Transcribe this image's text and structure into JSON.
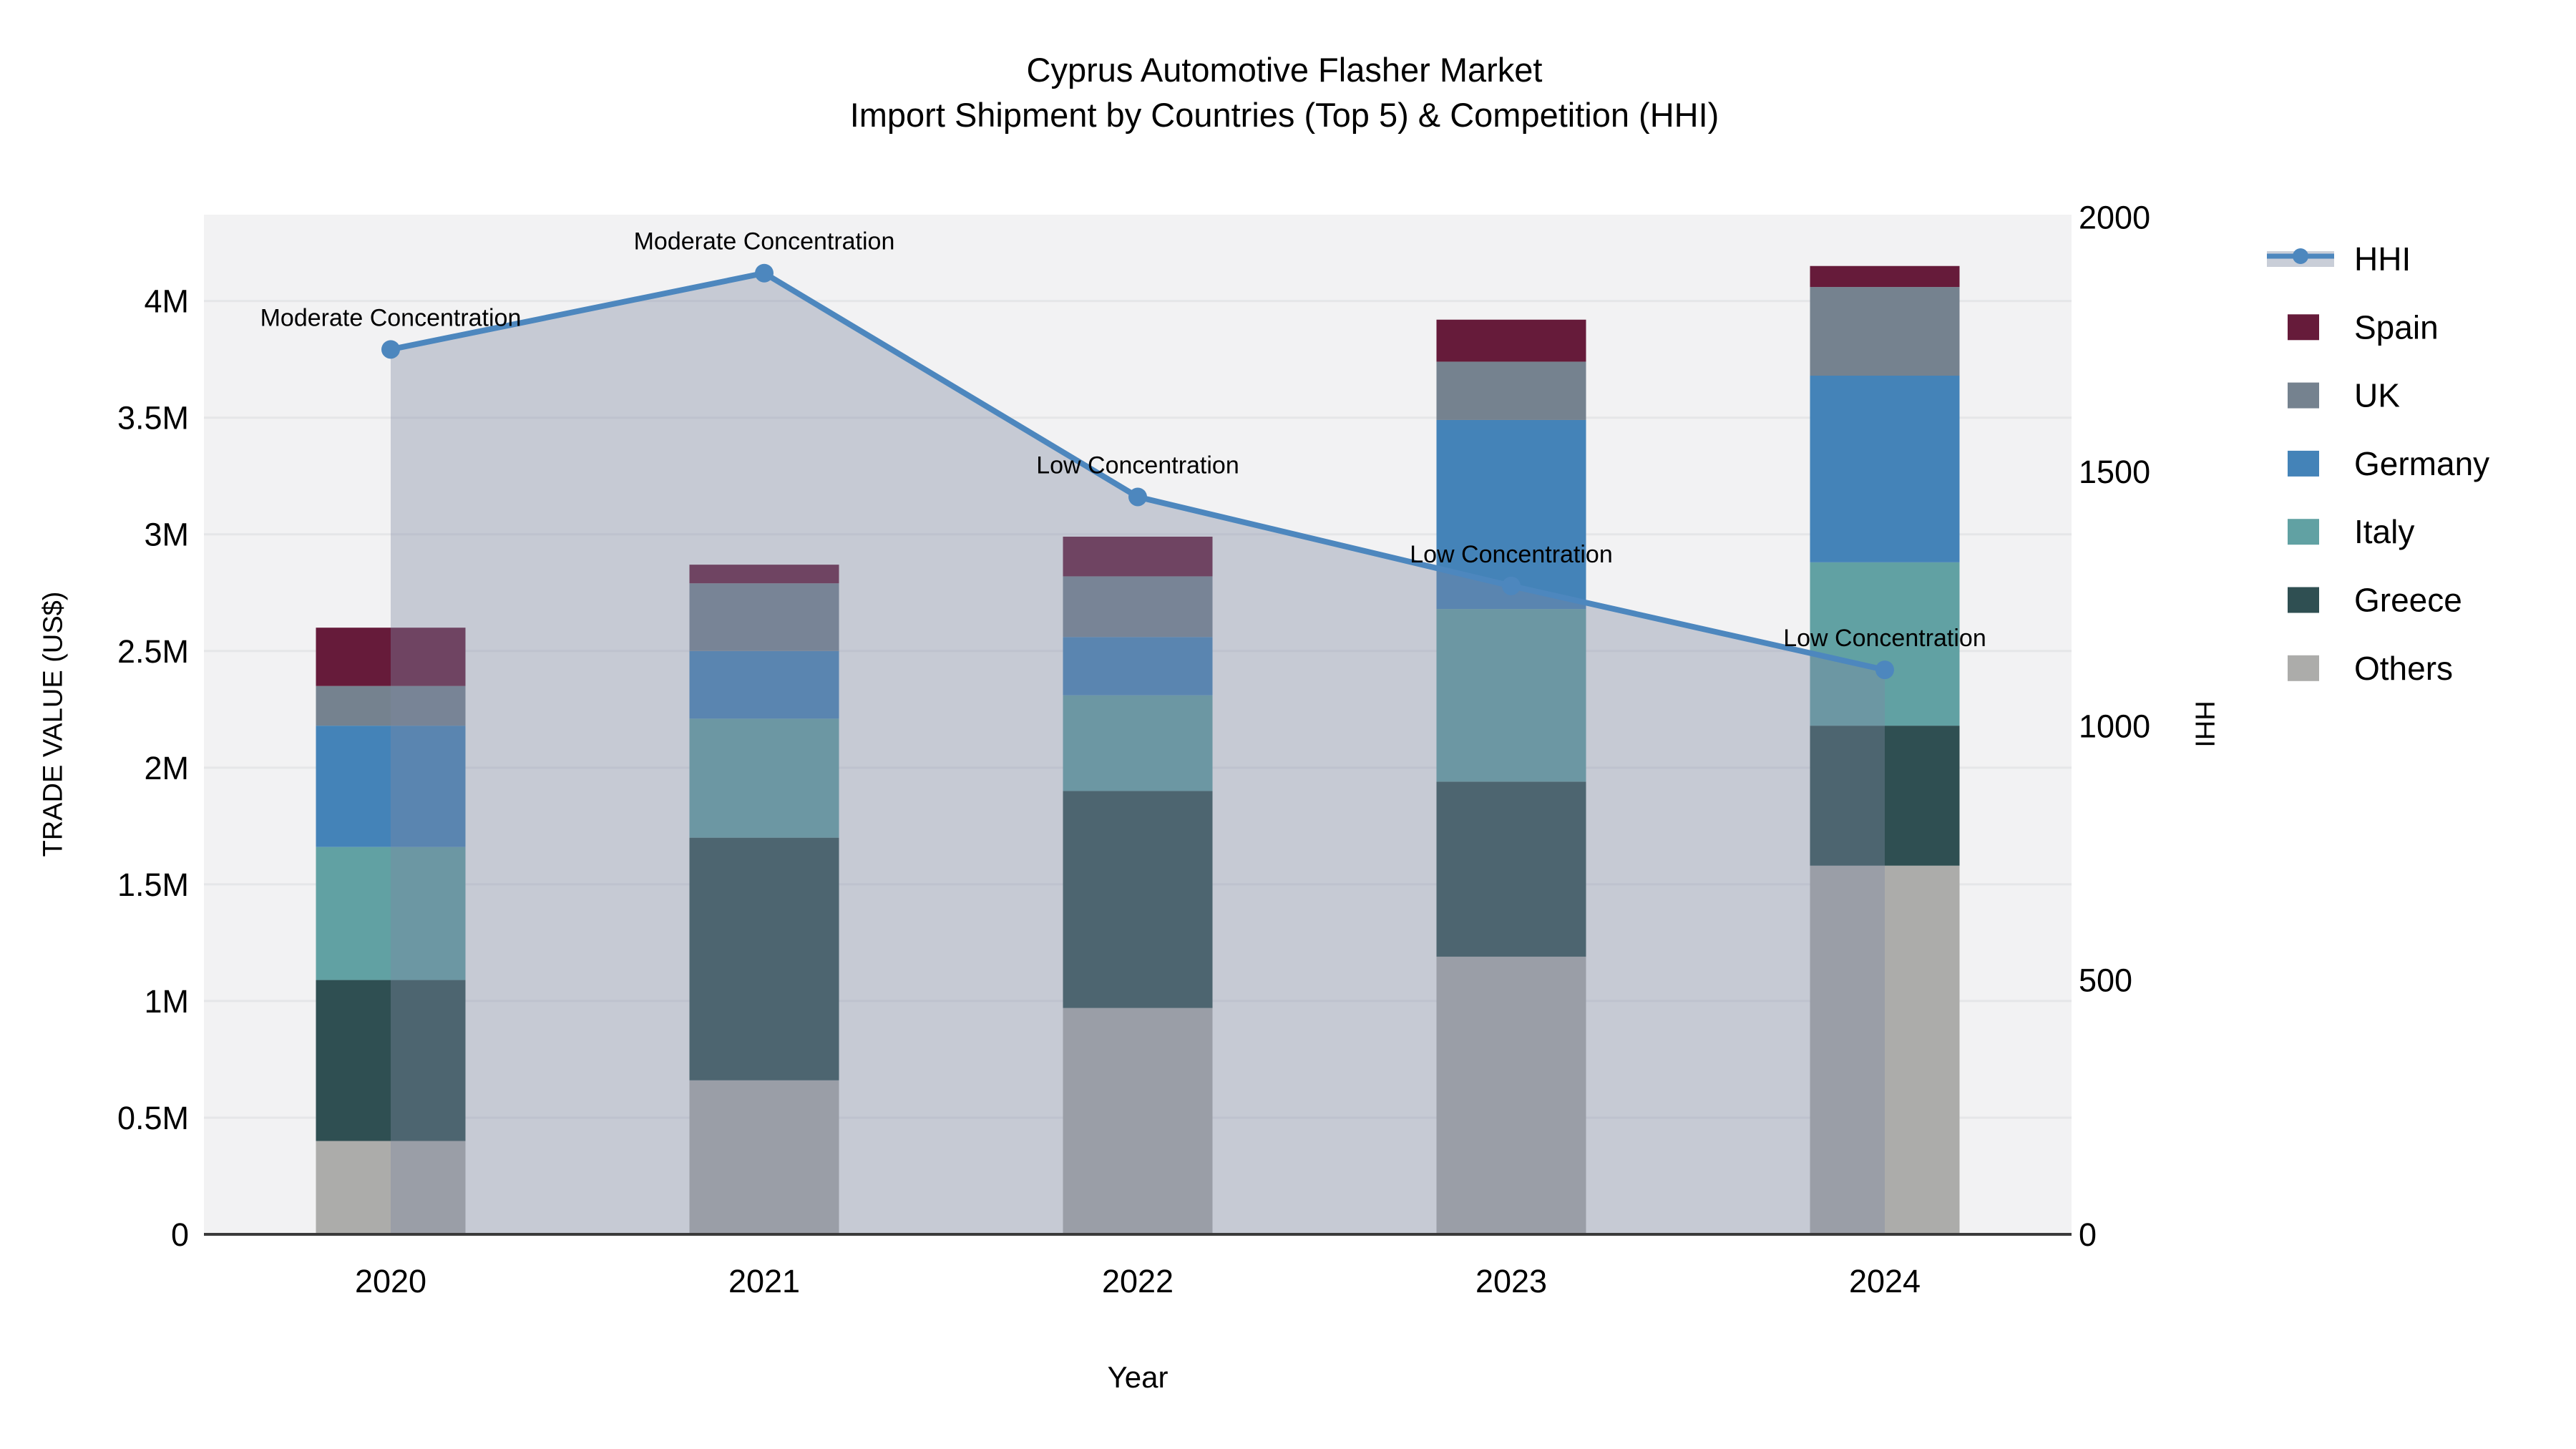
{
  "title": {
    "line1": "Cyprus Automotive Flasher Market",
    "line2": "Import Shipment by Countries (Top 5) & Competition (HHI)"
  },
  "axes": {
    "x_title": "Year",
    "y_left_title": "TRADE VALUE (US$)",
    "y_right_title": "HHI",
    "y_left_tick_labels": [
      "0",
      "0.5M",
      "1M",
      "1.5M",
      "2M",
      "2.5M",
      "3M",
      "3.5M",
      "4M"
    ],
    "y_right_tick_labels": [
      "0",
      "500",
      "1000",
      "1500",
      "2000"
    ]
  },
  "legend": {
    "items": [
      "HHI",
      "Spain",
      "UK",
      "Germany",
      "Italy",
      "Greece",
      "Others"
    ]
  },
  "colors": {
    "series": {
      "Spain": "#661B3A",
      "UK": "#75828F",
      "Germany": "#4483B8",
      "Italy": "#61A1A3",
      "Greece": "#2F4F52",
      "Others": "#ACACAA"
    },
    "hhi_line": "#4D87BE",
    "hhi_area_fill": "#7D8AA4",
    "hhi_area_opacity": 0.38,
    "legend_hhi_band": "#C9CED8",
    "plot_background": "#F2F2F3",
    "gridline": "#E5E6E8",
    "axis_line": "#3A3A3A",
    "text": "#000000"
  },
  "chart_data": {
    "type": "combo: stacked bar (left axis) + line with area fill (right axis)",
    "title": "Cyprus Automotive Flasher Market — Import Shipment by Countries (Top 5) & Competition (HHI)",
    "xlabel": "Year",
    "ylabel_left": "TRADE VALUE (US$)",
    "ylabel_right": "HHI",
    "categories": [
      "2020",
      "2021",
      "2022",
      "2023",
      "2024"
    ],
    "stack_order_bottom_to_top": [
      "Others",
      "Greece",
      "Italy",
      "Germany",
      "UK",
      "Spain"
    ],
    "series": [
      {
        "name": "Others",
        "axis": "left",
        "values": [
          400000,
          660000,
          970000,
          1190000,
          1580000
        ]
      },
      {
        "name": "Greece",
        "axis": "left",
        "values": [
          690000,
          1040000,
          930000,
          750000,
          600000
        ]
      },
      {
        "name": "Italy",
        "axis": "left",
        "values": [
          570000,
          510000,
          410000,
          740000,
          700000
        ]
      },
      {
        "name": "Germany",
        "axis": "left",
        "values": [
          520000,
          290000,
          250000,
          810000,
          800000
        ]
      },
      {
        "name": "UK",
        "axis": "left",
        "values": [
          170000,
          290000,
          260000,
          250000,
          380000
        ]
      },
      {
        "name": "Spain",
        "axis": "left",
        "values": [
          250000,
          80000,
          170000,
          180000,
          90000
        ]
      }
    ],
    "bar_totals": [
      2600000,
      2870000,
      2990000,
      3920000,
      4150000
    ],
    "line_series": {
      "name": "HHI",
      "axis": "right",
      "values": [
        1740,
        1890,
        1450,
        1275,
        1110
      ],
      "area_fill": true,
      "markers": true
    },
    "annotations": [
      "Moderate Concentration",
      "Moderate Concentration",
      "Low Concentration",
      "Low Concentration",
      "Low Concentration"
    ],
    "ylim_left": [
      0,
      4370000
    ],
    "ylim_right": [
      0,
      2005
    ],
    "left_tick_step": 500000,
    "right_tick_step": 500,
    "grid": "horizontal gridlines at every 0.5M, on",
    "legend_position": "right, outside plot"
  }
}
